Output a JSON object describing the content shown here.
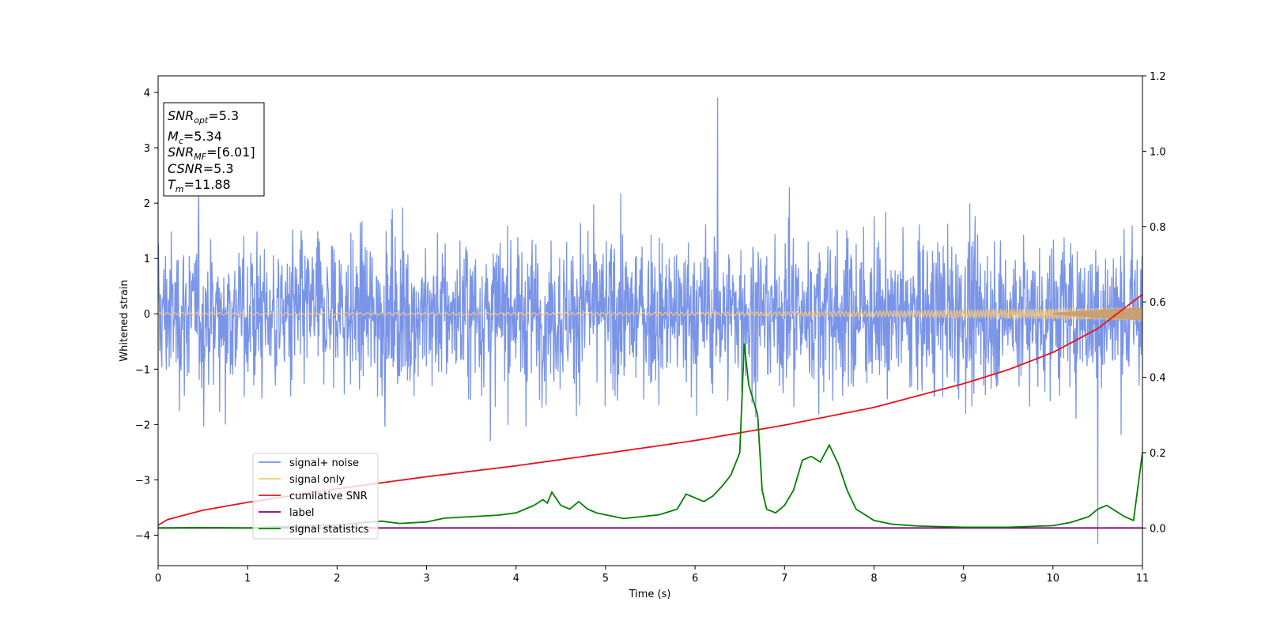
{
  "chart_data": {
    "type": "line",
    "xlabel": "Time (s)",
    "ylabel": "Whitened strain",
    "xlim": [
      0,
      11
    ],
    "ylim_left": [
      -4.55,
      4.3
    ],
    "ylim_right": [
      -0.1,
      1.2
    ],
    "x_ticks": [
      0,
      1,
      2,
      3,
      4,
      5,
      6,
      7,
      8,
      9,
      10,
      11
    ],
    "y_ticks_left": [
      -4,
      -3,
      -2,
      -1,
      0,
      1,
      2,
      3,
      4
    ],
    "y_ticks_right": [
      0.0,
      0.2,
      0.4,
      0.6,
      0.8,
      1.0,
      1.2
    ],
    "grid": false,
    "legend_position": "lower-left",
    "stats_box": [
      {
        "base": "SNR",
        "sub": "opt",
        "value": "=5.3"
      },
      {
        "base": "M",
        "sub": "c",
        "value": "=5.34"
      },
      {
        "base": "SNR",
        "sub": "MF",
        "value": "=[6.01]"
      },
      {
        "base": "CSNR",
        "sub": "",
        "value": "=5.3"
      },
      {
        "base": "T",
        "sub": "m",
        "value": "=11.88"
      }
    ],
    "series": [
      {
        "name": "signal+ noise",
        "axis": "left",
        "color": "#7994e8",
        "kind": "noise-band",
        "x_range": [
          0,
          11
        ],
        "typical_peak": 2.2,
        "max_value": 3.9,
        "min_value": -4.15
      },
      {
        "name": "signal only",
        "axis": "left",
        "color": "#f5c87a",
        "kind": "chirp",
        "x_range": [
          0,
          11
        ],
        "start_amplitude": 0.02,
        "end_amplitude": 0.12
      },
      {
        "name": "cumilative SNR",
        "axis": "right",
        "color": "#e8121b",
        "x": [
          0,
          0.1,
          0.5,
          1,
          2,
          3,
          4,
          5,
          6,
          7,
          8,
          9,
          9.5,
          10,
          10.5,
          11
        ],
        "values": [
          0.007,
          0.022,
          0.047,
          0.068,
          0.104,
          0.136,
          0.165,
          0.198,
          0.232,
          0.273,
          0.32,
          0.383,
          0.42,
          0.466,
          0.529,
          0.62
        ]
      },
      {
        "name": "label",
        "axis": "right",
        "color": "#800080",
        "x": [
          0,
          11
        ],
        "values": [
          0,
          0
        ]
      },
      {
        "name": "signal statistics",
        "axis": "right",
        "color": "#008000",
        "x": [
          0,
          0.5,
          1,
          2,
          2.3,
          2.5,
          2.7,
          3,
          3.2,
          3.5,
          3.8,
          4.0,
          4.1,
          4.2,
          4.3,
          4.35,
          4.4,
          4.5,
          4.6,
          4.7,
          4.8,
          4.9,
          5.0,
          5.1,
          5.2,
          5.4,
          5.6,
          5.8,
          5.9,
          6.0,
          6.1,
          6.2,
          6.3,
          6.4,
          6.5,
          6.55,
          6.6,
          6.65,
          6.7,
          6.75,
          6.8,
          6.9,
          7.0,
          7.1,
          7.2,
          7.3,
          7.4,
          7.5,
          7.6,
          7.7,
          7.8,
          8.0,
          8.2,
          8.5,
          9.0,
          9.5,
          10.0,
          10.2,
          10.4,
          10.5,
          10.6,
          10.7,
          10.8,
          10.9,
          11.0
        ],
        "values": [
          0.0,
          0.001,
          0.0,
          0.008,
          0.015,
          0.018,
          0.012,
          0.016,
          0.026,
          0.03,
          0.034,
          0.04,
          0.05,
          0.06,
          0.075,
          0.066,
          0.095,
          0.06,
          0.05,
          0.07,
          0.05,
          0.04,
          0.035,
          0.03,
          0.025,
          0.03,
          0.035,
          0.05,
          0.09,
          0.08,
          0.07,
          0.085,
          0.11,
          0.14,
          0.2,
          0.49,
          0.38,
          0.34,
          0.3,
          0.1,
          0.05,
          0.04,
          0.06,
          0.1,
          0.18,
          0.19,
          0.175,
          0.22,
          0.17,
          0.1,
          0.05,
          0.02,
          0.01,
          0.005,
          0.002,
          0.002,
          0.006,
          0.015,
          0.03,
          0.05,
          0.06,
          0.045,
          0.03,
          0.02,
          0.2
        ]
      }
    ]
  }
}
